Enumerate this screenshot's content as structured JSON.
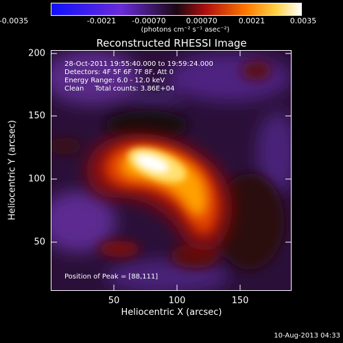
{
  "colorbar": {
    "ticks": [
      "-0.0035",
      "-0.0021",
      "-0.00070",
      "0.00070",
      "0.0021",
      "0.0035"
    ],
    "units": "(photons cm⁻² s⁻¹ asec⁻²)"
  },
  "title": "Reconstructed RHESSI Image",
  "info": {
    "time": "28-Oct-2011 19:55:40.000 to 19:59:24.000",
    "detectors": "Detectors: 4F 5F 6F 7F 8F, Att 0",
    "energy": "Energy Range: 6.0 - 12.0 keV",
    "clean": "Clean     Total counts: 3.86E+04",
    "peak": "Position of Peak = [88,111]"
  },
  "chart_data": {
    "type": "heatmap",
    "title": "Reconstructed RHESSI Image",
    "xlabel": "Heliocentric X (arcsec)",
    "ylabel": "Heliocentric Y (arcsec)",
    "xlim": [
      0,
      190
    ],
    "ylim": [
      10,
      200
    ],
    "xticks": [
      "50",
      "100",
      "150"
    ],
    "yticks": [
      "50",
      "100",
      "150",
      "200"
    ],
    "colorbar_range": [
      -0.0035,
      0.0035
    ],
    "colormap": "black-purple-red-yellow-white",
    "peak_position": [
      88,
      111
    ]
  },
  "timestamp": "10-Aug-2013 04:33"
}
